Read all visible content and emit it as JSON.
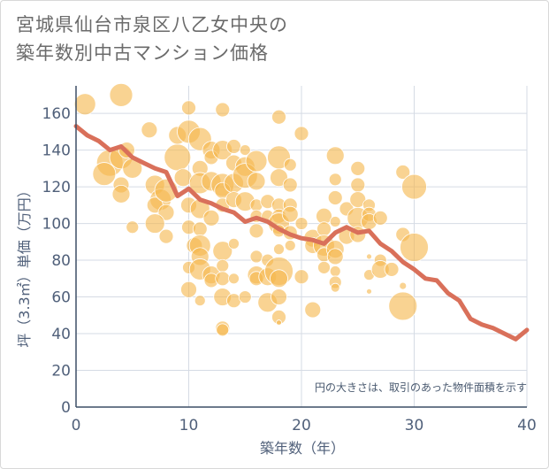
{
  "title": {
    "line1": "宮城県仙台市泉区八乙女中央の",
    "line2": "築年数別中古マンション価格"
  },
  "chart_data": {
    "type": "scatter",
    "xlabel": "築年数（年）",
    "ylabel": "坪（3.3㎡）単価（万円）",
    "xlim": [
      0,
      40
    ],
    "ylim": [
      0,
      175
    ],
    "xticks": [
      0,
      10,
      20,
      30,
      40
    ],
    "yticks": [
      0,
      20,
      40,
      60,
      80,
      100,
      120,
      140,
      160
    ],
    "grid": true,
    "note": "円の大きさは、取引のあった物件面積を示す",
    "colors": {
      "bubble": "#f5b84f",
      "line": "#d9705a",
      "grid": "#d5dbe4"
    },
    "bubbles": [
      {
        "x": 0.8,
        "y": 165,
        "r": 12
      },
      {
        "x": 4,
        "y": 170,
        "r": 13
      },
      {
        "x": 3,
        "y": 133,
        "r": 15
      },
      {
        "x": 4,
        "y": 136,
        "r": 13
      },
      {
        "x": 5,
        "y": 130,
        "r": 11
      },
      {
        "x": 4,
        "y": 121,
        "r": 9
      },
      {
        "x": 4,
        "y": 116,
        "r": 10
      },
      {
        "x": 2.5,
        "y": 127,
        "r": 13
      },
      {
        "x": 4.5,
        "y": 140,
        "r": 9
      },
      {
        "x": 5,
        "y": 98,
        "r": 7
      },
      {
        "x": 6.5,
        "y": 151,
        "r": 9
      },
      {
        "x": 7,
        "y": 121,
        "r": 11
      },
      {
        "x": 7.5,
        "y": 113,
        "r": 12
      },
      {
        "x": 7,
        "y": 110,
        "r": 9
      },
      {
        "x": 8,
        "y": 118,
        "r": 13
      },
      {
        "x": 8,
        "y": 106,
        "r": 9
      },
      {
        "x": 7,
        "y": 100,
        "r": 11
      },
      {
        "x": 8,
        "y": 93,
        "r": 8
      },
      {
        "x": 9,
        "y": 136,
        "r": 15
      },
      {
        "x": 9,
        "y": 148,
        "r": 10
      },
      {
        "x": 9.5,
        "y": 125,
        "r": 10
      },
      {
        "x": 10,
        "y": 150,
        "r": 13
      },
      {
        "x": 10,
        "y": 163,
        "r": 8
      },
      {
        "x": 10,
        "y": 110,
        "r": 9
      },
      {
        "x": 10,
        "y": 98,
        "r": 8
      },
      {
        "x": 10.5,
        "y": 88,
        "r": 9
      },
      {
        "x": 10,
        "y": 76,
        "r": 7
      },
      {
        "x": 10,
        "y": 64,
        "r": 9
      },
      {
        "x": 11,
        "y": 146,
        "r": 13
      },
      {
        "x": 11,
        "y": 130,
        "r": 9
      },
      {
        "x": 11,
        "y": 122,
        "r": 12
      },
      {
        "x": 11,
        "y": 108,
        "r": 11
      },
      {
        "x": 11,
        "y": 97,
        "r": 8
      },
      {
        "x": 11,
        "y": 88,
        "r": 12
      },
      {
        "x": 11,
        "y": 82,
        "r": 10
      },
      {
        "x": 11,
        "y": 75,
        "r": 12
      },
      {
        "x": 11,
        "y": 58,
        "r": 6
      },
      {
        "x": 12,
        "y": 140,
        "r": 10
      },
      {
        "x": 12,
        "y": 136,
        "r": 8
      },
      {
        "x": 12,
        "y": 123,
        "r": 11
      },
      {
        "x": 12,
        "y": 103,
        "r": 9
      },
      {
        "x": 12,
        "y": 72,
        "r": 10
      },
      {
        "x": 12,
        "y": 69,
        "r": 8
      },
      {
        "x": 13,
        "y": 162,
        "r": 8
      },
      {
        "x": 13,
        "y": 140,
        "r": 11
      },
      {
        "x": 13,
        "y": 121,
        "r": 13
      },
      {
        "x": 13,
        "y": 118,
        "r": 9
      },
      {
        "x": 13,
        "y": 110,
        "r": 8
      },
      {
        "x": 13,
        "y": 85,
        "r": 11
      },
      {
        "x": 13,
        "y": 77,
        "r": 7
      },
      {
        "x": 13,
        "y": 70,
        "r": 8
      },
      {
        "x": 13,
        "y": 60,
        "r": 10
      },
      {
        "x": 13,
        "y": 43,
        "r": 8
      },
      {
        "x": 13,
        "y": 42,
        "r": 7
      },
      {
        "x": 14,
        "y": 142,
        "r": 8
      },
      {
        "x": 14,
        "y": 133,
        "r": 9
      },
      {
        "x": 14,
        "y": 122,
        "r": 11
      },
      {
        "x": 14,
        "y": 113,
        "r": 9
      },
      {
        "x": 14,
        "y": 89,
        "r": 6
      },
      {
        "x": 14,
        "y": 70,
        "r": 6
      },
      {
        "x": 14,
        "y": 58,
        "r": 8
      },
      {
        "x": 15,
        "y": 140,
        "r": 6
      },
      {
        "x": 15,
        "y": 131,
        "r": 11
      },
      {
        "x": 15,
        "y": 126,
        "r": 14
      },
      {
        "x": 15,
        "y": 112,
        "r": 11
      },
      {
        "x": 15,
        "y": 60,
        "r": 7
      },
      {
        "x": 16,
        "y": 134,
        "r": 12
      },
      {
        "x": 16,
        "y": 123,
        "r": 10
      },
      {
        "x": 16,
        "y": 110,
        "r": 7
      },
      {
        "x": 16,
        "y": 104,
        "r": 7
      },
      {
        "x": 16,
        "y": 96,
        "r": 8
      },
      {
        "x": 16,
        "y": 82,
        "r": 7
      },
      {
        "x": 16,
        "y": 72,
        "r": 10
      },
      {
        "x": 16,
        "y": 70,
        "r": 8
      },
      {
        "x": 17,
        "y": 112,
        "r": 8
      },
      {
        "x": 17,
        "y": 104,
        "r": 7
      },
      {
        "x": 17,
        "y": 80,
        "r": 7
      },
      {
        "x": 17,
        "y": 71,
        "r": 10
      },
      {
        "x": 17,
        "y": 57,
        "r": 11
      },
      {
        "x": 18,
        "y": 158,
        "r": 8
      },
      {
        "x": 18,
        "y": 136,
        "r": 13
      },
      {
        "x": 18,
        "y": 125,
        "r": 10
      },
      {
        "x": 18,
        "y": 110,
        "r": 8
      },
      {
        "x": 18,
        "y": 104,
        "r": 8
      },
      {
        "x": 18,
        "y": 100,
        "r": 12
      },
      {
        "x": 18,
        "y": 96,
        "r": 7
      },
      {
        "x": 18,
        "y": 86,
        "r": 6
      },
      {
        "x": 18,
        "y": 74,
        "r": 16
      },
      {
        "x": 18,
        "y": 70,
        "r": 10
      },
      {
        "x": 18,
        "y": 60,
        "r": 9
      },
      {
        "x": 18,
        "y": 49,
        "r": 8
      },
      {
        "x": 18,
        "y": 46,
        "r": 3
      },
      {
        "x": 19,
        "y": 132,
        "r": 7
      },
      {
        "x": 19,
        "y": 121,
        "r": 8
      },
      {
        "x": 19,
        "y": 110,
        "r": 8
      },
      {
        "x": 19,
        "y": 105,
        "r": 9
      },
      {
        "x": 19,
        "y": 95,
        "r": 8
      },
      {
        "x": 19,
        "y": 88,
        "r": 6
      },
      {
        "x": 20,
        "y": 149,
        "r": 8
      },
      {
        "x": 20,
        "y": 100,
        "r": 7
      },
      {
        "x": 20,
        "y": 71,
        "r": 8
      },
      {
        "x": 21,
        "y": 92,
        "r": 10
      },
      {
        "x": 21,
        "y": 88,
        "r": 9
      },
      {
        "x": 21,
        "y": 53,
        "r": 9
      },
      {
        "x": 22,
        "y": 104,
        "r": 9
      },
      {
        "x": 22,
        "y": 97,
        "r": 8
      },
      {
        "x": 22,
        "y": 88,
        "r": 12
      },
      {
        "x": 22,
        "y": 83,
        "r": 8
      },
      {
        "x": 22,
        "y": 76,
        "r": 7
      },
      {
        "x": 23,
        "y": 137,
        "r": 10
      },
      {
        "x": 23,
        "y": 124,
        "r": 7
      },
      {
        "x": 23,
        "y": 114,
        "r": 8
      },
      {
        "x": 23,
        "y": 101,
        "r": 6
      },
      {
        "x": 23,
        "y": 86,
        "r": 10
      },
      {
        "x": 23,
        "y": 82,
        "r": 9
      },
      {
        "x": 23,
        "y": 74,
        "r": 6
      },
      {
        "x": 23,
        "y": 68,
        "r": 7
      },
      {
        "x": 23,
        "y": 65,
        "r": 5
      },
      {
        "x": 24,
        "y": 108,
        "r": 8
      },
      {
        "x": 24,
        "y": 93,
        "r": 9
      },
      {
        "x": 25,
        "y": 130,
        "r": 8
      },
      {
        "x": 25,
        "y": 121,
        "r": 8
      },
      {
        "x": 25,
        "y": 113,
        "r": 9
      },
      {
        "x": 25,
        "y": 103,
        "r": 12
      },
      {
        "x": 25,
        "y": 94,
        "r": 9
      },
      {
        "x": 26,
        "y": 110,
        "r": 7
      },
      {
        "x": 26,
        "y": 105,
        "r": 8
      },
      {
        "x": 26,
        "y": 101,
        "r": 9
      },
      {
        "x": 26,
        "y": 82,
        "r": 3
      },
      {
        "x": 26,
        "y": 72,
        "r": 6
      },
      {
        "x": 26,
        "y": 63,
        "r": 3
      },
      {
        "x": 27,
        "y": 103,
        "r": 8
      },
      {
        "x": 27,
        "y": 80,
        "r": 7
      },
      {
        "x": 27,
        "y": 75,
        "r": 10
      },
      {
        "x": 28,
        "y": 75,
        "r": 8
      },
      {
        "x": 29,
        "y": 128,
        "r": 8
      },
      {
        "x": 29,
        "y": 94,
        "r": 8
      },
      {
        "x": 29,
        "y": 66,
        "r": 4
      },
      {
        "x": 29,
        "y": 55,
        "r": 16
      },
      {
        "x": 30,
        "y": 120,
        "r": 14
      },
      {
        "x": 30,
        "y": 87,
        "r": 16
      }
    ],
    "trend": [
      [
        0,
        153
      ],
      [
        1,
        148
      ],
      [
        2,
        145
      ],
      [
        3,
        140
      ],
      [
        4,
        142
      ],
      [
        5,
        136
      ],
      [
        6,
        133
      ],
      [
        7,
        130
      ],
      [
        8,
        128
      ],
      [
        9,
        115
      ],
      [
        10,
        119
      ],
      [
        11,
        113
      ],
      [
        12,
        111
      ],
      [
        13,
        108
      ],
      [
        14,
        106
      ],
      [
        15,
        101
      ],
      [
        16,
        103
      ],
      [
        17,
        101
      ],
      [
        18,
        97
      ],
      [
        19,
        94
      ],
      [
        20,
        92
      ],
      [
        21,
        91
      ],
      [
        22,
        89
      ],
      [
        23,
        95
      ],
      [
        24,
        98
      ],
      [
        25,
        95
      ],
      [
        26,
        96
      ],
      [
        27,
        89
      ],
      [
        28,
        85
      ],
      [
        29,
        79
      ],
      [
        30,
        75
      ],
      [
        31,
        70
      ],
      [
        32,
        69
      ],
      [
        33,
        62
      ],
      [
        34,
        58
      ],
      [
        35,
        48
      ],
      [
        36,
        45
      ],
      [
        37,
        43
      ],
      [
        38,
        40
      ],
      [
        39,
        37
      ],
      [
        40,
        42
      ]
    ]
  }
}
